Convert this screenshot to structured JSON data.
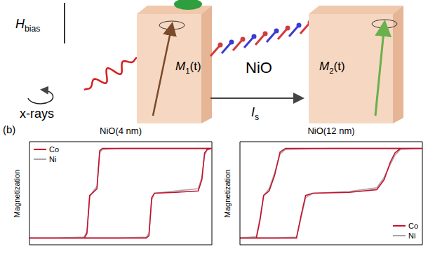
{
  "diagram": {
    "field": {
      "base": "H",
      "sub": "bias"
    },
    "source": "x-rays",
    "layer": "NiO",
    "magnet_1": {
      "base": "M",
      "sub": "1",
      "tail": "(t)"
    },
    "magnet_2": {
      "base": "M",
      "sub": "2",
      "tail": "(t)"
    },
    "current": {
      "base": "I",
      "sub": "s"
    }
  },
  "panel_label": "(b)",
  "chart_data": [
    {
      "type": "line",
      "title": "NiO(4 nm)",
      "ylabel": "Magnetization",
      "x": [
        1.0,
        0.5,
        0.0,
        -0.2,
        -0.23,
        -0.26,
        -0.3,
        -0.34,
        -0.37,
        -0.4,
        -0.7,
        -1.0,
        -0.5,
        0.0,
        0.28,
        0.31,
        0.34,
        0.37,
        0.6,
        0.85,
        0.89,
        0.92,
        0.95,
        1.0
      ],
      "series": [
        {
          "name": "Co",
          "color": "#c8102e",
          "values": [
            1,
            1,
            1,
            1,
            0.95,
            0.1,
            0.02,
            -0.05,
            -0.9,
            -1,
            -1,
            -1,
            -1,
            -1,
            -1,
            -0.95,
            -0.1,
            0,
            0.02,
            0.05,
            0.3,
            0.9,
            0.98,
            1
          ]
        },
        {
          "name": "Ni",
          "color": "#a6a6a6",
          "values": [
            1,
            1,
            1,
            0.98,
            0.9,
            0.15,
            0.05,
            -0.08,
            -0.85,
            -0.98,
            -1,
            -1,
            -1,
            -1,
            -0.98,
            -0.9,
            -0.15,
            0,
            0.05,
            0.1,
            0.35,
            0.85,
            0.97,
            1
          ]
        }
      ],
      "xlim": [
        -1,
        1
      ],
      "ylim": [
        -1.15,
        1.15
      ],
      "tick_labels": false,
      "legend": "upper left"
    },
    {
      "type": "line",
      "title": "NiO(12 nm)",
      "ylabel": "Magnetization",
      "x": [
        1.0,
        0.5,
        0.0,
        -0.5,
        -0.56,
        -0.62,
        -0.68,
        -0.74,
        -0.78,
        -0.82,
        -1.0,
        -0.6,
        -0.38,
        -0.33,
        -0.28,
        -0.2,
        0.2,
        0.5,
        0.58,
        0.65,
        0.7,
        0.76,
        1.0
      ],
      "series": [
        {
          "name": "Co",
          "color": "#c8102e",
          "values": [
            1,
            1,
            1,
            1,
            0.92,
            0.4,
            0.05,
            -0.05,
            -0.6,
            -1,
            -1,
            -1,
            -1,
            -0.5,
            -0.05,
            0,
            0.02,
            0.08,
            0.3,
            0.7,
            0.9,
            1,
            1
          ]
        },
        {
          "name": "Ni",
          "color": "#a6a6a6",
          "values": [
            1,
            1,
            1,
            0.98,
            0.88,
            0.45,
            0.1,
            -0.05,
            -0.55,
            -0.97,
            -1,
            -1,
            -0.98,
            -0.55,
            -0.1,
            0,
            0.04,
            0.12,
            0.35,
            0.65,
            0.85,
            0.98,
            1
          ]
        }
      ],
      "xlim": [
        -1,
        1
      ],
      "ylim": [
        -1.15,
        1.15
      ],
      "tick_labels": false,
      "legend": "lower right"
    }
  ]
}
